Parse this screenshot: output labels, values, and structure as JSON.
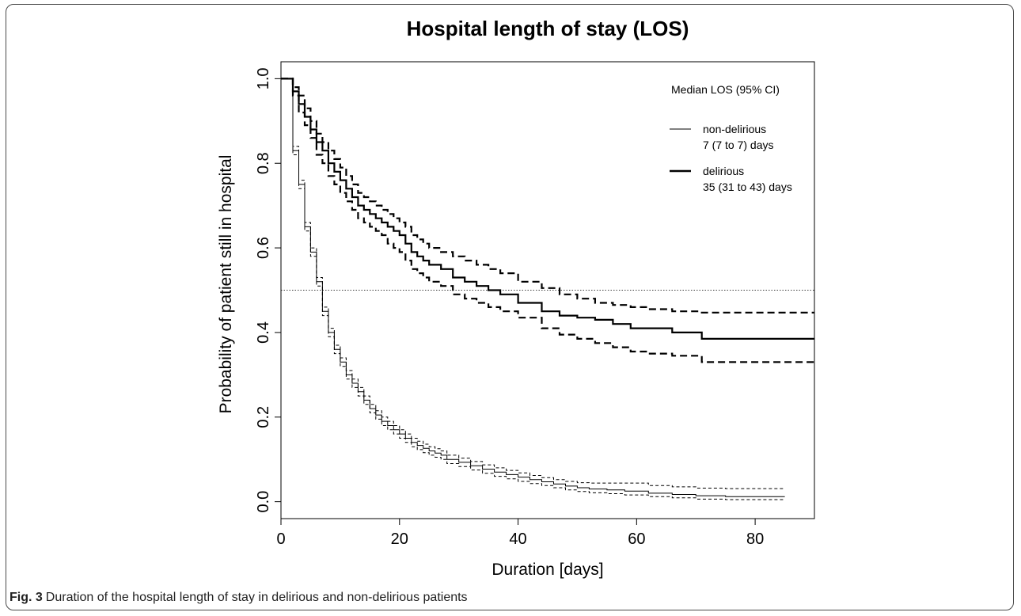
{
  "caption": {
    "label": "Fig. 3",
    "text": "Duration of the hospital length of stay in delirious and non-delirious patients"
  },
  "chart_data": {
    "type": "line",
    "subtype": "kaplan-meier step curves with 95% CI (dashed)",
    "title": "Hospital length of stay (LOS)",
    "xlabel": "Duration [days]",
    "ylabel": "Probability of patient still in hospital",
    "xlim": [
      0,
      90
    ],
    "ylim": [
      -0.04,
      1.04
    ],
    "xticks": [
      0,
      20,
      40,
      60,
      80
    ],
    "yticks": [
      0.0,
      0.2,
      0.4,
      0.6,
      0.8,
      1.0
    ],
    "xtick_labels": [
      "0",
      "20",
      "40",
      "60",
      "80"
    ],
    "ytick_labels": [
      "0.0",
      "0.2",
      "0.4",
      "0.6",
      "0.8",
      "1.0"
    ],
    "reference_line": {
      "y": 0.5,
      "style": "dotted"
    },
    "legend": {
      "placement": "top-right",
      "title": "Median LOS (95% CI)",
      "entries": [
        {
          "line1": "non-delirious",
          "line2": "7 (7 to 7) days",
          "series": "non-delirious"
        },
        {
          "line1": "delirious",
          "line2": "35 (31 to 43) days",
          "series": "delirious"
        }
      ]
    },
    "series": [
      {
        "name": "non-delirious",
        "style": "thin",
        "x": [
          0,
          2,
          3,
          4,
          5,
          6,
          7,
          8,
          9,
          10,
          11,
          12,
          13,
          14,
          15,
          16,
          17,
          18,
          19,
          20,
          21,
          22,
          23,
          24,
          25,
          26,
          27,
          28,
          30,
          32,
          34,
          36,
          38,
          40,
          42,
          44,
          46,
          48,
          50,
          52,
          55,
          58,
          62,
          66,
          70,
          75,
          85
        ],
        "y": [
          1.0,
          0.83,
          0.75,
          0.65,
          0.59,
          0.52,
          0.45,
          0.4,
          0.36,
          0.33,
          0.3,
          0.28,
          0.26,
          0.24,
          0.22,
          0.205,
          0.19,
          0.18,
          0.17,
          0.16,
          0.15,
          0.14,
          0.133,
          0.126,
          0.12,
          0.115,
          0.11,
          0.1,
          0.093,
          0.085,
          0.077,
          0.07,
          0.064,
          0.058,
          0.052,
          0.047,
          0.042,
          0.037,
          0.033,
          0.03,
          0.028,
          0.025,
          0.02,
          0.017,
          0.014,
          0.012,
          0.012
        ],
        "ci_lower": [
          1.0,
          0.82,
          0.74,
          0.64,
          0.58,
          0.51,
          0.44,
          0.39,
          0.35,
          0.32,
          0.29,
          0.27,
          0.25,
          0.23,
          0.21,
          0.195,
          0.18,
          0.17,
          0.16,
          0.15,
          0.14,
          0.13,
          0.123,
          0.116,
          0.11,
          0.105,
          0.1,
          0.09,
          0.083,
          0.075,
          0.067,
          0.06,
          0.054,
          0.048,
          0.043,
          0.038,
          0.033,
          0.028,
          0.024,
          0.021,
          0.019,
          0.016,
          0.012,
          0.009,
          0.006,
          0.005,
          0.005
        ],
        "ci_upper": [
          1.0,
          0.84,
          0.76,
          0.66,
          0.6,
          0.53,
          0.46,
          0.41,
          0.37,
          0.34,
          0.31,
          0.29,
          0.27,
          0.25,
          0.23,
          0.215,
          0.2,
          0.19,
          0.18,
          0.17,
          0.16,
          0.15,
          0.143,
          0.136,
          0.13,
          0.125,
          0.12,
          0.11,
          0.103,
          0.095,
          0.087,
          0.08,
          0.074,
          0.068,
          0.062,
          0.057,
          0.052,
          0.048,
          0.045,
          0.044,
          0.044,
          0.044,
          0.038,
          0.035,
          0.032,
          0.031,
          0.031
        ]
      },
      {
        "name": "delirious",
        "style": "thick",
        "x": [
          0,
          2,
          3,
          4,
          5,
          6,
          7,
          8,
          9,
          10,
          11,
          12,
          13,
          14,
          15,
          16,
          17,
          18,
          19,
          20,
          21,
          22,
          23,
          24,
          25,
          27,
          29,
          31,
          33,
          35,
          37,
          40,
          44,
          47,
          50,
          53,
          56,
          59,
          62,
          66,
          71,
          90
        ],
        "y": [
          1.0,
          0.97,
          0.94,
          0.91,
          0.88,
          0.85,
          0.83,
          0.8,
          0.78,
          0.76,
          0.74,
          0.72,
          0.7,
          0.69,
          0.68,
          0.67,
          0.66,
          0.65,
          0.64,
          0.63,
          0.61,
          0.59,
          0.58,
          0.57,
          0.56,
          0.55,
          0.53,
          0.52,
          0.51,
          0.5,
          0.49,
          0.47,
          0.45,
          0.44,
          0.435,
          0.43,
          0.42,
          0.41,
          0.41,
          0.4,
          0.385,
          0.385
        ],
        "ci_lower": [
          1.0,
          0.96,
          0.92,
          0.89,
          0.86,
          0.82,
          0.8,
          0.77,
          0.75,
          0.73,
          0.71,
          0.69,
          0.67,
          0.66,
          0.65,
          0.64,
          0.63,
          0.61,
          0.6,
          0.59,
          0.57,
          0.55,
          0.54,
          0.53,
          0.52,
          0.51,
          0.49,
          0.48,
          0.47,
          0.46,
          0.45,
          0.435,
          0.41,
          0.395,
          0.385,
          0.375,
          0.365,
          0.355,
          0.35,
          0.345,
          0.33,
          0.33
        ],
        "ci_upper": [
          1.0,
          0.98,
          0.96,
          0.93,
          0.9,
          0.87,
          0.85,
          0.83,
          0.81,
          0.79,
          0.77,
          0.75,
          0.73,
          0.72,
          0.71,
          0.7,
          0.69,
          0.68,
          0.67,
          0.66,
          0.65,
          0.63,
          0.62,
          0.61,
          0.6,
          0.59,
          0.58,
          0.57,
          0.56,
          0.55,
          0.54,
          0.52,
          0.505,
          0.49,
          0.48,
          0.47,
          0.465,
          0.46,
          0.455,
          0.45,
          0.447,
          0.447
        ]
      }
    ]
  }
}
